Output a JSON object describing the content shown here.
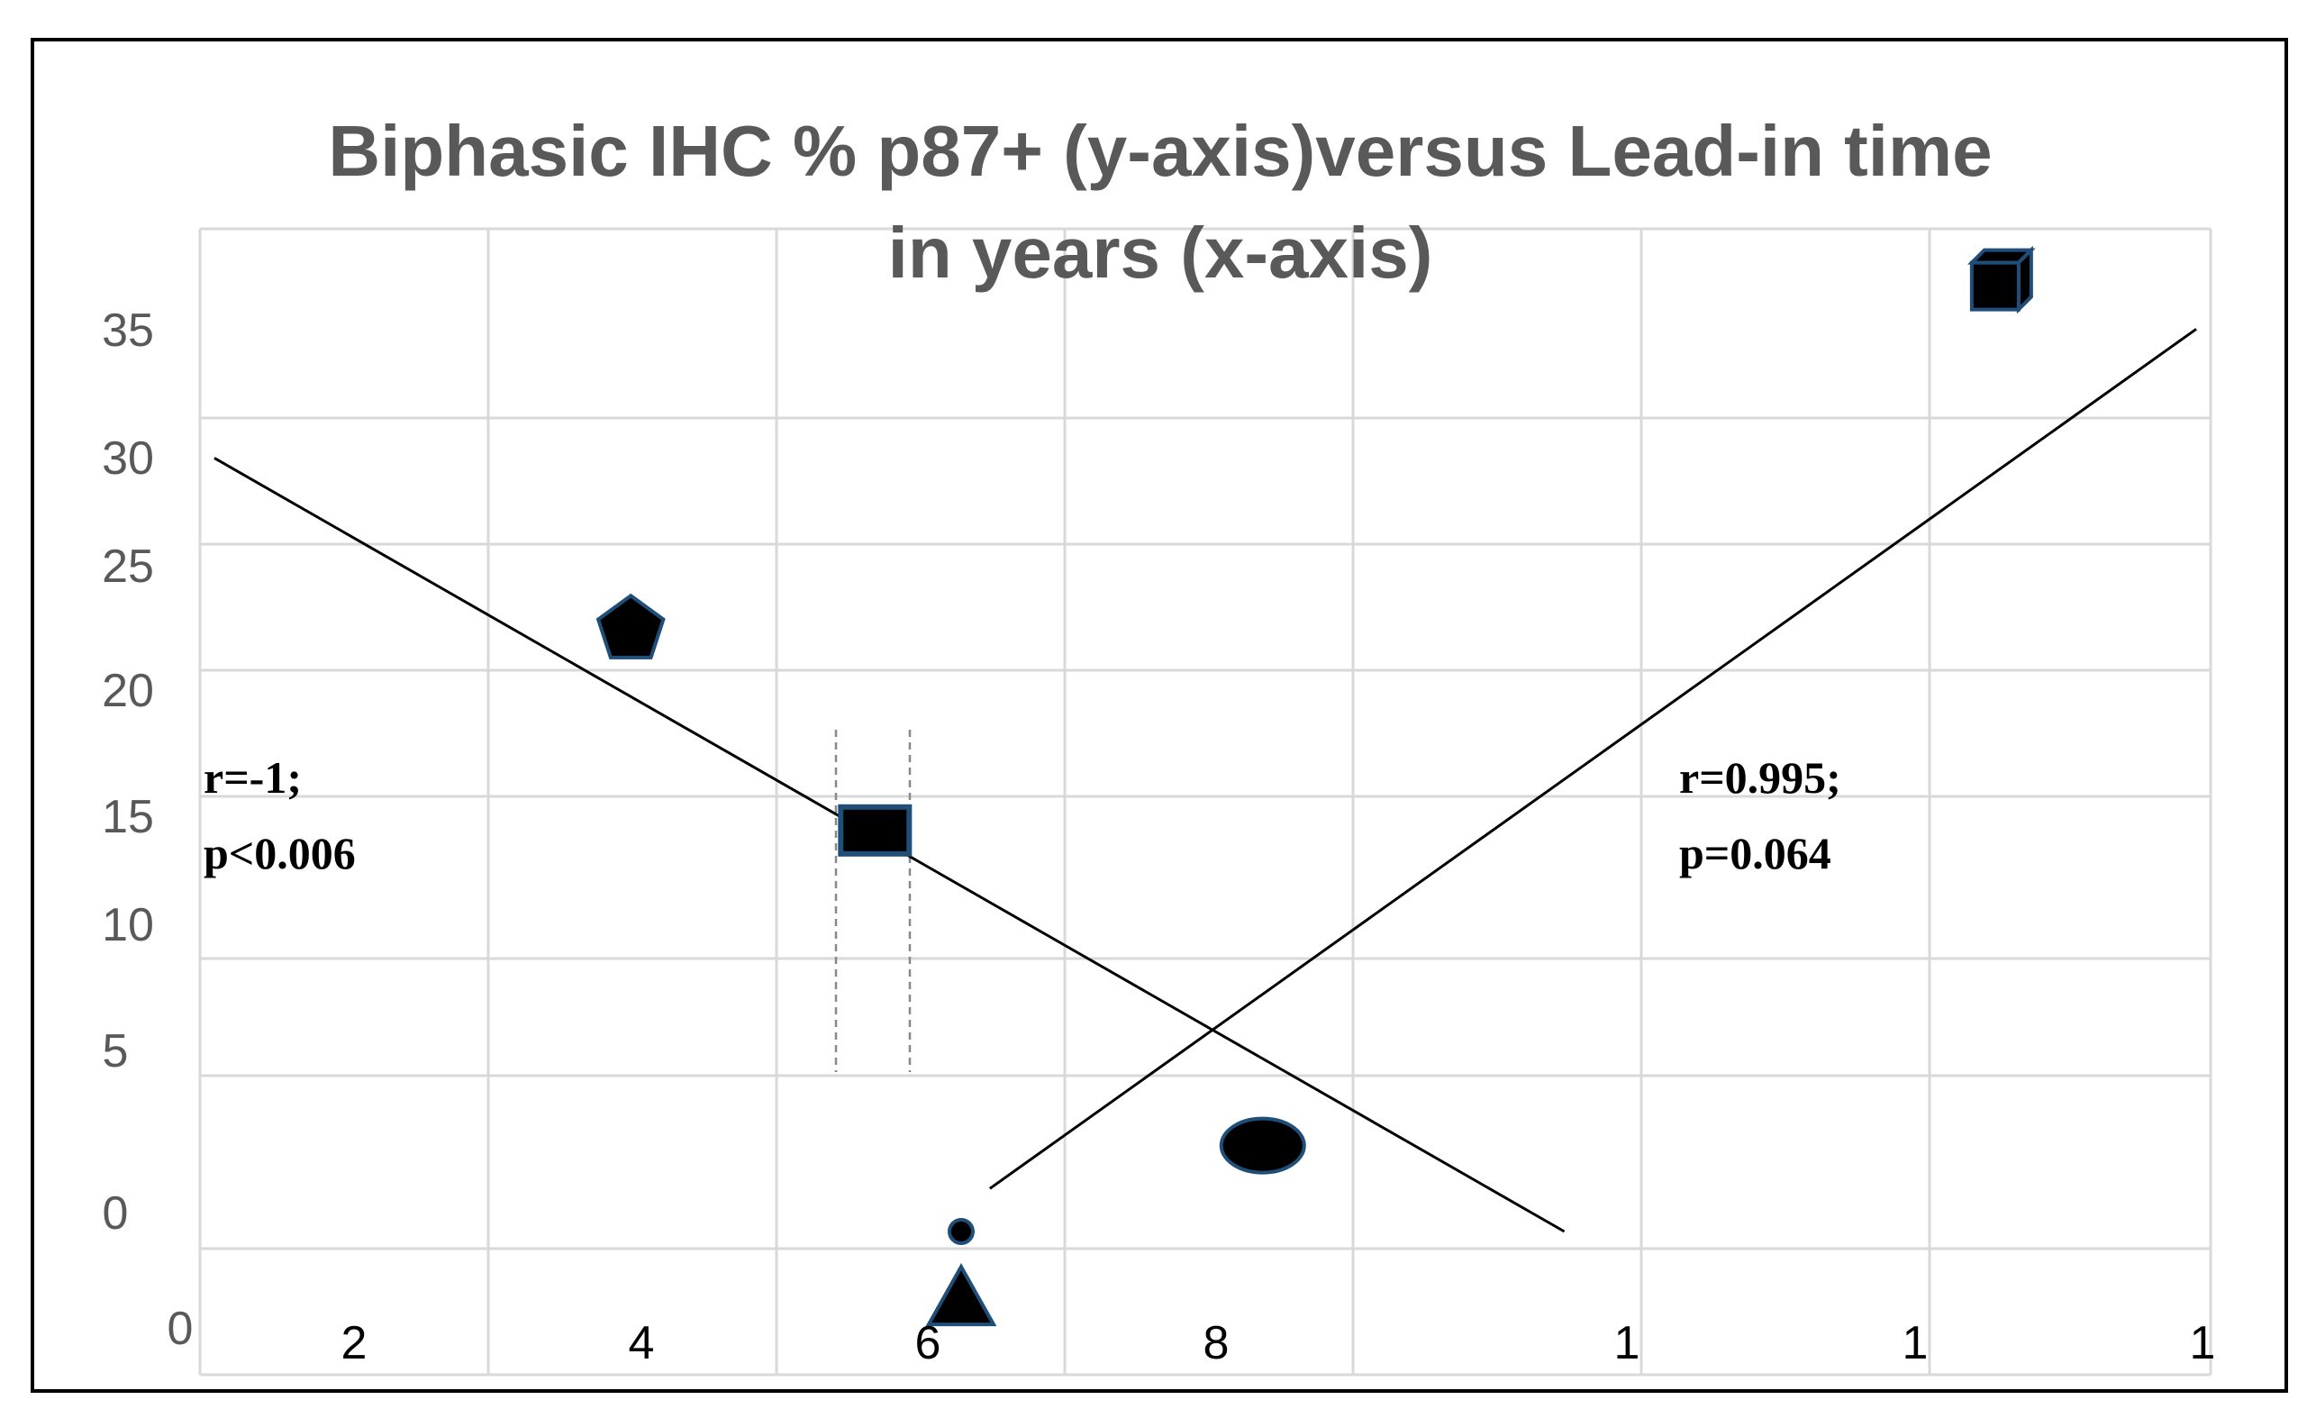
{
  "chart_data": {
    "type": "scatter",
    "title": "Biphasic IHC % p87+ (y-axis)versus Lead-in time in years (x-axis)",
    "title_lines": [
      "Biphasic IHC % p87+ (y-axis)versus Lead-in time",
      "in years (x-axis)"
    ],
    "xlabel": "",
    "ylabel": "",
    "y_tick_labels": [
      "35",
      "30",
      "25",
      "20",
      "15",
      "10",
      "5",
      "0",
      "0"
    ],
    "x_tick_labels": [
      "2",
      "4",
      "6",
      "8",
      "1",
      "1",
      "1"
    ],
    "xlim": [
      1,
      15
    ],
    "ylim": [
      -2,
      38
    ],
    "grid": true,
    "points": [
      {
        "label": "pentagon",
        "shape": "pentagon",
        "x": 4,
        "y": 24
      },
      {
        "label": "rectangle",
        "shape": "rectangle",
        "x": 5.7,
        "y": 17
      },
      {
        "label": "small-circle",
        "shape": "circle",
        "x": 6.3,
        "y": 3
      },
      {
        "label": "triangle",
        "shape": "triangle",
        "x": 6.3,
        "y": 0.7
      },
      {
        "label": "ellipse",
        "shape": "ellipse",
        "x": 8.4,
        "y": 6
      },
      {
        "label": "cube",
        "shape": "cube",
        "x": 13.5,
        "y": 36
      }
    ],
    "trend_lines": [
      {
        "name": "negative",
        "x": [
          1.1,
          10.5
        ],
        "y": [
          30,
          3
        ]
      },
      {
        "name": "positive",
        "x": [
          6.5,
          14.9
        ],
        "y": [
          4.5,
          34.5
        ]
      }
    ],
    "annotations": [
      {
        "lines": [
          "r=-1;",
          "p<0.006"
        ]
      },
      {
        "lines": [
          "r=0.995;",
          "p=0.064"
        ]
      }
    ],
    "colors": {
      "marker_fill": "#000000",
      "marker_edge": "#1f4e79",
      "grid": "#d9d9d9",
      "title": "#595959",
      "axis_text": "#595959"
    }
  }
}
